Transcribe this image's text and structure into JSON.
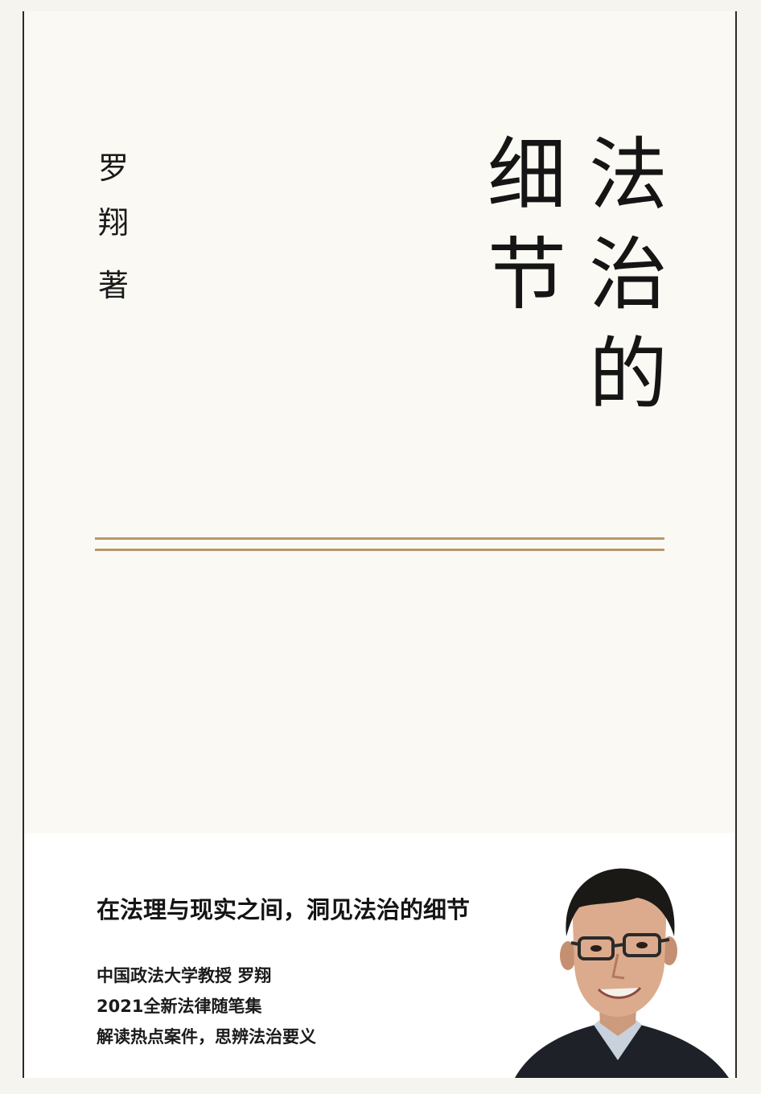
{
  "title": {
    "col_1": [
      "法",
      "治",
      "的"
    ],
    "col_2": [
      "细",
      "节"
    ]
  },
  "author": {
    "chars": [
      "罗",
      "翔",
      "著"
    ]
  },
  "tagline": "在法理与现实之间，洞见法治的细节",
  "info_lines": [
    "中国政法大学教授 罗翔",
    "2021全新法律随笔集",
    "解读热点案件，思辨法治要义"
  ],
  "colors": {
    "page_bg": "#f6f4ee",
    "cover_bg": "#fbf9f3",
    "rule": "#b9976a",
    "text": "#151515"
  },
  "images": {
    "portrait": "author-portrait-photo"
  }
}
